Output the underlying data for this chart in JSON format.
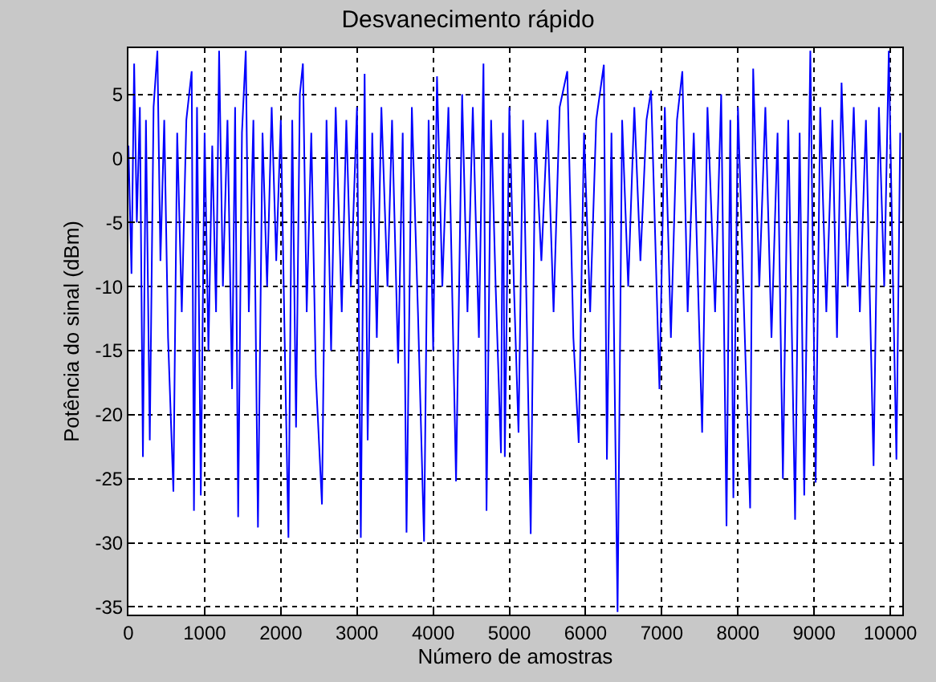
{
  "chart_data": {
    "type": "line",
    "title": "Desvanecimento rápido",
    "xlabel": "Número de amostras",
    "ylabel": "Potência do sinal (dBm)",
    "xlim": [
      0,
      10157
    ],
    "ylim": [
      -35.6,
      8.6
    ],
    "xticks": [
      0,
      1000,
      2000,
      3000,
      4000,
      5000,
      6000,
      7000,
      8000,
      9000,
      10000
    ],
    "yticks": [
      -35,
      -30,
      -25,
      -20,
      -15,
      -10,
      -5,
      0,
      5
    ],
    "grid": true,
    "line_style": "solid",
    "marker": "none",
    "series": [
      {
        "color": "#0000ff",
        "x": [
          0,
          40,
          75,
          110,
          150,
          190,
          230,
          280,
          330,
          380,
          420,
          470,
          520,
          590,
          640,
          700,
          760,
          830,
          860,
          900,
          950,
          1000,
          1050,
          1100,
          1150,
          1190,
          1240,
          1300,
          1360,
          1400,
          1440,
          1490,
          1540,
          1580,
          1640,
          1700,
          1760,
          1820,
          1880,
          1940,
          2000,
          2050,
          2100,
          2150,
          2200,
          2250,
          2290,
          2340,
          2400,
          2460,
          2540,
          2600,
          2660,
          2720,
          2800,
          2860,
          2920,
          3000,
          3050,
          3100,
          3140,
          3200,
          3260,
          3320,
          3400,
          3460,
          3540,
          3600,
          3650,
          3720,
          3800,
          3880,
          3940,
          4000,
          4050,
          4120,
          4200,
          4300,
          4380,
          4450,
          4520,
          4600,
          4660,
          4700,
          4760,
          4820,
          4890,
          4915,
          4940,
          5000,
          5060,
          5120,
          5180,
          5280,
          5340,
          5420,
          5500,
          5580,
          5660,
          5760,
          5840,
          5910,
          5980,
          6060,
          6140,
          6240,
          6280,
          6340,
          6420,
          6480,
          6560,
          6640,
          6720,
          6800,
          6860,
          6970,
          7040,
          7120,
          7200,
          7270,
          7340,
          7420,
          7530,
          7600,
          7700,
          7780,
          7850,
          7900,
          7940,
          8000,
          8080,
          8160,
          8200,
          8280,
          8360,
          8440,
          8520,
          8590,
          8660,
          8750,
          8810,
          8870,
          8950,
          9020,
          9080,
          9160,
          9240,
          9300,
          9360,
          9440,
          9520,
          9600,
          9680,
          9780,
          9850,
          9920,
          9980,
          10030,
          10080,
          10130
        ],
        "values": [
          1,
          -9,
          7.4,
          -5,
          4,
          -23.3,
          3,
          -22,
          4,
          8.4,
          -8,
          3,
          -14,
          -26,
          2,
          -12,
          3,
          6.8,
          -27.5,
          4,
          -26.3,
          2,
          -15,
          1,
          -12,
          8.4,
          -10,
          3,
          -18,
          4,
          -28,
          2,
          8.4,
          -12,
          3,
          -28.8,
          2,
          -10,
          4,
          -8,
          3,
          -14,
          -29.6,
          3,
          -21,
          5,
          7.4,
          -12,
          2,
          -17,
          -27,
          3,
          -15,
          4,
          -12,
          3,
          -10,
          4,
          -29.6,
          6.6,
          -22,
          2,
          -14,
          4,
          -10,
          3,
          -16,
          2,
          -29.2,
          4,
          -12,
          -29.9,
          3,
          -15,
          6.4,
          -10,
          4,
          -25.2,
          5,
          -12,
          4,
          -14,
          7.4,
          -27.5,
          3,
          -10,
          -23,
          2,
          -23.3,
          4,
          -10,
          -21.4,
          3,
          -29.3,
          2,
          -8,
          3,
          -12,
          4,
          6.8,
          -14,
          -22.2,
          2,
          -12,
          3,
          7.3,
          -23.5,
          2,
          -35.4,
          3,
          -10,
          4,
          -8,
          3,
          5.3,
          -18,
          4,
          -14,
          3,
          6.8,
          -12,
          2,
          -21.4,
          4,
          -12,
          5,
          -28.7,
          3,
          -26.5,
          4,
          -12,
          -27.3,
          7,
          -10,
          4,
          -14,
          2,
          -25,
          3,
          -28.2,
          2,
          -26.3,
          8.4,
          -25.3,
          4,
          -12,
          3,
          -14,
          5.9,
          -10,
          4,
          -12,
          3,
          -24,
          4,
          -10,
          8.4,
          -8,
          -23.5,
          2
        ]
      }
    ]
  }
}
